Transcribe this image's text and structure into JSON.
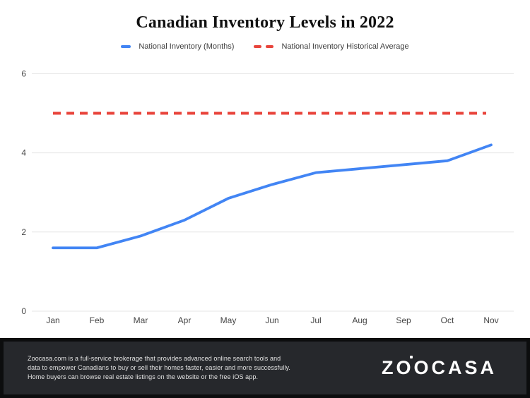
{
  "title": "Canadian Inventory Levels in 2022",
  "legend": {
    "items": [
      {
        "label": "National Inventory (Months)",
        "color": "#4285f4",
        "style": "solid"
      },
      {
        "label": "National Inventory Historical Average",
        "color": "#e8453c",
        "style": "dashed"
      }
    ]
  },
  "chart_data": {
    "type": "line",
    "title": "Canadian Inventory Levels in 2022",
    "categories": [
      "Jan",
      "Feb",
      "Mar",
      "Apr",
      "May",
      "Jun",
      "Jul",
      "Aug",
      "Sep",
      "Oct",
      "Nov"
    ],
    "series": [
      {
        "name": "National Inventory (Months)",
        "color": "#4285f4",
        "style": "solid",
        "values": [
          1.6,
          1.6,
          1.9,
          2.3,
          2.85,
          3.2,
          3.5,
          3.6,
          3.7,
          3.8,
          4.2
        ]
      },
      {
        "name": "National Inventory Historical Average",
        "color": "#e8453c",
        "style": "dashed",
        "values": [
          5,
          5,
          5,
          5,
          5,
          5,
          5,
          5,
          5,
          5,
          5
        ]
      }
    ],
    "xlabel": "",
    "ylabel": "",
    "ylim": [
      0,
      6
    ],
    "yticks": [
      0,
      2,
      4,
      6
    ],
    "grid": true,
    "legend_position": "top"
  },
  "footer": {
    "text": "Zoocasa.com is a full-service brokerage that provides advanced online search tools and\ndata to empower Canadians to buy or sell their homes faster, easier and more successfully.\nHome buyers can browse real estate listings on the website or the free iOS app.",
    "logo": {
      "left": "ZO",
      "dot_letter": "O",
      "right": "CASA"
    }
  },
  "colors": {
    "grid": "#e4e4e4",
    "tick_text": "#4b4b4b"
  }
}
